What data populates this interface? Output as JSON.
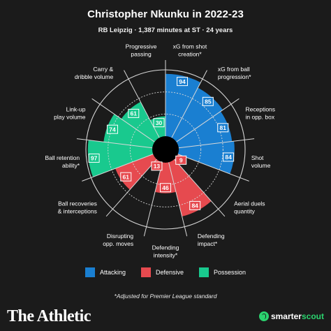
{
  "header": {
    "title": "Christopher Nkunku in 2022-23",
    "subtitle": "RB Leipzig · 1,387 minutes at ST · 24 years"
  },
  "colors": {
    "Attacking": "#1a7fd1",
    "Defensive": "#e64a4f",
    "Possession": "#19c98e",
    "background": "#1b1b1b",
    "grid": "#d8d8d8"
  },
  "chart_data": {
    "type": "radial-bar",
    "scale": [
      0,
      100
    ],
    "metrics": [
      {
        "label": "xG from shot creation*",
        "value": 94,
        "category": "Attacking"
      },
      {
        "label": "xG from ball progression*",
        "value": 85,
        "category": "Attacking"
      },
      {
        "label": "Receptions in opp. box",
        "value": 81,
        "category": "Attacking"
      },
      {
        "label": "Shot volume",
        "value": 84,
        "category": "Attacking"
      },
      {
        "label": "Aerial duels quantity",
        "value": 9,
        "category": "Defensive"
      },
      {
        "label": "Defending impact*",
        "value": 84,
        "category": "Defensive"
      },
      {
        "label": "Defending intensity*",
        "value": 46,
        "category": "Defensive"
      },
      {
        "label": "Disrupting opp. moves",
        "value": 13,
        "category": "Defensive"
      },
      {
        "label": "Ball recoveries & interceptions",
        "value": 61,
        "category": "Defensive"
      },
      {
        "label": "Ball retention ability*",
        "value": 97,
        "category": "Possession"
      },
      {
        "label": "Link-up play volume",
        "value": 74,
        "category": "Possession"
      },
      {
        "label": "Carry & dribble volume",
        "value": 61,
        "category": "Possession"
      },
      {
        "label": "Progressive passing",
        "value": 30,
        "category": "Possession"
      }
    ],
    "legend": {
      "placement": "bottom",
      "entries": [
        "Attacking",
        "Defensive",
        "Possession"
      ]
    }
  },
  "footnote": "*Adjusted for Premier League standard",
  "brand": "The Athletic",
  "partner": {
    "part1": "smarter",
    "part2": "scout",
    "icon": "smarterscout-logo-icon"
  }
}
